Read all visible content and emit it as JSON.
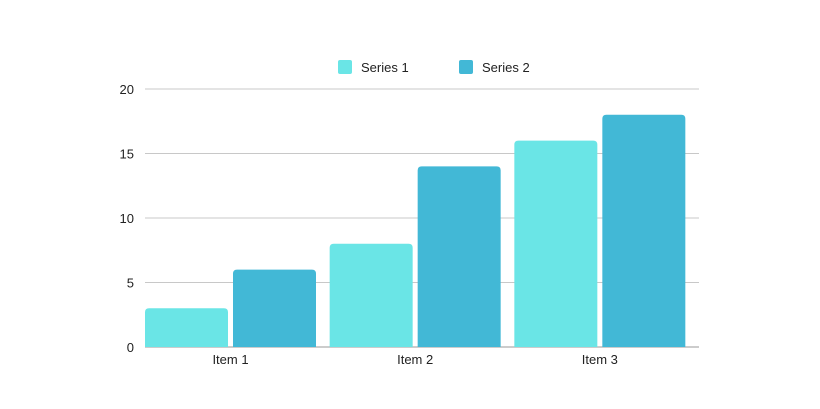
{
  "chart_data": {
    "type": "bar",
    "categories": [
      "Item 1",
      "Item 2",
      "Item 3"
    ],
    "series": [
      {
        "name": "Series 1",
        "values": [
          3,
          8,
          16
        ],
        "color": "#6ae5e6"
      },
      {
        "name": "Series 2",
        "values": [
          6,
          14,
          18
        ],
        "color": "#42b8d6"
      }
    ],
    "title": "",
    "xlabel": "",
    "ylabel": "",
    "ylim": [
      0,
      20
    ],
    "yticks": [
      0,
      5,
      10,
      15,
      20
    ],
    "grid": true,
    "legend": "top-center"
  },
  "colors": {
    "grid": "#c8c8c8",
    "axis": "#9a9a9a",
    "text": "#222222"
  }
}
